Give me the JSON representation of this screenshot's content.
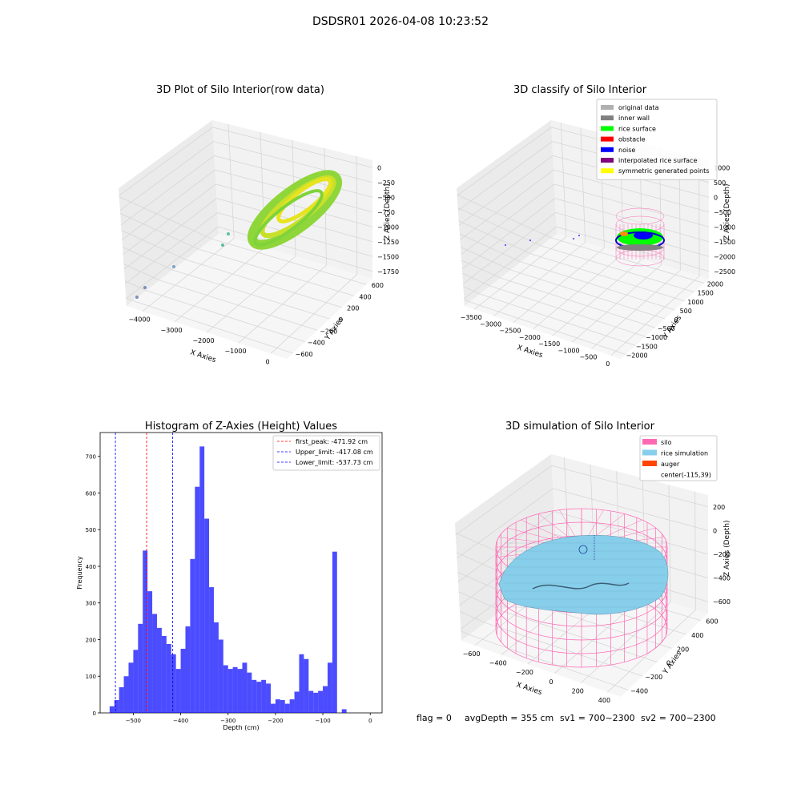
{
  "suptitle": "DSDSR01 2026-04-08 10:23:52",
  "footer": {
    "flag": "flag = 0",
    "avg_depth": "avgDepth = 355 cm",
    "sv1": "sv1 = 700~2300",
    "sv2": "sv2 = 700~2300"
  },
  "colors": {
    "bar": "#0000ff",
    "peak_line": "#ff0000",
    "limit_line": "#0000ff",
    "pane": "#f2f2f2",
    "grid": "#d6d6d6",
    "silo": "#ff69b4",
    "rice_sim": "#87ceeb",
    "auger": "#ff4500",
    "rice_points": "#7fd33a"
  },
  "chart_data": [
    {
      "type": "scatter",
      "subtype": "3d",
      "title": "3D Plot of Silo Interior(row data)",
      "xlabel": "X Axies",
      "ylabel": "Y Axies",
      "zlabel": "Z Axies (Depth)",
      "x_ticks": [
        "−4000",
        "−3000",
        "−2000",
        "−1000",
        "0"
      ],
      "y_ticks": [
        "−600",
        "−400",
        "−200",
        "0",
        "200",
        "400",
        "600"
      ],
      "z_ticks": [
        "−1750",
        "−1500",
        "−1250",
        "−1000",
        "−750",
        "−500",
        "−250",
        "0"
      ],
      "grid": true
    },
    {
      "type": "scatter",
      "subtype": "3d",
      "title": "3D classify of Silo Interior",
      "xlabel": "X Axies",
      "ylabel": "Y Axies",
      "zlabel": "Z Axies (Depth)",
      "x_ticks": [
        "−3500",
        "−3000",
        "−2500",
        "−2000",
        "−1500",
        "−1000",
        "−500",
        "0"
      ],
      "y_ticks": [
        "−2000",
        "−1500",
        "−1000",
        "−500",
        "0",
        "500",
        "1000",
        "1500",
        "2000"
      ],
      "z_ticks": [
        "−2500",
        "−2000",
        "−1500",
        "−1000",
        "−500",
        "0",
        "500",
        "1000"
      ],
      "legend_position": "top-right",
      "legend": [
        {
          "label": "original data",
          "color": "#b0b0b0"
        },
        {
          "label": "inner wall",
          "color": "#808080"
        },
        {
          "label": "rice surface",
          "color": "#00ff00"
        },
        {
          "label": "obstacle",
          "color": "#ff0000"
        },
        {
          "label": "noise",
          "color": "#0000ff"
        },
        {
          "label": "interpolated rice surface",
          "color": "#800080"
        },
        {
          "label": "symmetric generated points",
          "color": "#ffff00"
        }
      ],
      "grid": true
    },
    {
      "type": "bar",
      "subtype": "histogram",
      "title": "Histogram of Z-Axies (Height) Values",
      "xlabel": "Depth (cm)",
      "ylabel": "Frequency",
      "xlim": [
        -570,
        25
      ],
      "ylim": [
        0,
        765
      ],
      "bin_width": 10,
      "x_ticks": [
        -500,
        -400,
        -300,
        -200,
        -100,
        0
      ],
      "x_tick_labels": [
        "−500",
        "−400",
        "−300",
        "−200",
        "−100",
        "0"
      ],
      "y_ticks": [
        0,
        100,
        200,
        300,
        400,
        500,
        600,
        700
      ],
      "y_tick_labels": [
        "0",
        "100",
        "200",
        "300",
        "400",
        "500",
        "600",
        "700"
      ],
      "bins": [
        {
          "left": -550,
          "value": 18
        },
        {
          "left": -540,
          "value": 35
        },
        {
          "left": -530,
          "value": 70
        },
        {
          "left": -520,
          "value": 100
        },
        {
          "left": -510,
          "value": 137
        },
        {
          "left": -500,
          "value": 172
        },
        {
          "left": -490,
          "value": 243
        },
        {
          "left": -480,
          "value": 443
        },
        {
          "left": -470,
          "value": 332
        },
        {
          "left": -460,
          "value": 270
        },
        {
          "left": -450,
          "value": 232
        },
        {
          "left": -440,
          "value": 210
        },
        {
          "left": -430,
          "value": 188
        },
        {
          "left": -420,
          "value": 160
        },
        {
          "left": -410,
          "value": 120
        },
        {
          "left": -400,
          "value": 175
        },
        {
          "left": -390,
          "value": 236
        },
        {
          "left": -380,
          "value": 420
        },
        {
          "left": -370,
          "value": 617
        },
        {
          "left": -360,
          "value": 727
        },
        {
          "left": -350,
          "value": 530
        },
        {
          "left": -340,
          "value": 343
        },
        {
          "left": -330,
          "value": 247
        },
        {
          "left": -320,
          "value": 200
        },
        {
          "left": -310,
          "value": 130
        },
        {
          "left": -300,
          "value": 120
        },
        {
          "left": -290,
          "value": 125
        },
        {
          "left": -280,
          "value": 120
        },
        {
          "left": -270,
          "value": 137
        },
        {
          "left": -260,
          "value": 110
        },
        {
          "left": -250,
          "value": 90
        },
        {
          "left": -240,
          "value": 85
        },
        {
          "left": -230,
          "value": 90
        },
        {
          "left": -220,
          "value": 80
        },
        {
          "left": -210,
          "value": 25
        },
        {
          "left": -200,
          "value": 37
        },
        {
          "left": -190,
          "value": 35
        },
        {
          "left": -180,
          "value": 25
        },
        {
          "left": -170,
          "value": 37
        },
        {
          "left": -160,
          "value": 58
        },
        {
          "left": -150,
          "value": 160
        },
        {
          "left": -140,
          "value": 147
        },
        {
          "left": -130,
          "value": 60
        },
        {
          "left": -120,
          "value": 55
        },
        {
          "left": -110,
          "value": 60
        },
        {
          "left": -100,
          "value": 73
        },
        {
          "left": -90,
          "value": 137
        },
        {
          "left": -80,
          "value": 440
        },
        {
          "left": -60,
          "value": 10
        }
      ],
      "vlines": [
        {
          "name": "first_peak: -471.92 cm",
          "x": -471.92,
          "color": "#ff0000"
        },
        {
          "name": "Upper_limit: -417.08 cm",
          "x": -417.08,
          "color": "#0000ff"
        },
        {
          "name": "Lower_limit: -537.73 cm",
          "x": -537.73,
          "color": "#0000ff"
        }
      ],
      "legend_position": "top-right",
      "grid": false
    },
    {
      "type": "area",
      "subtype": "3d-surface",
      "title": "3D simulation of Silo Interior",
      "xlabel": "X Axies",
      "ylabel": "Y Axies",
      "zlabel": "Z Axies (Depth)",
      "x_ticks": [
        "−600",
        "−400",
        "−200",
        "0",
        "200",
        "400"
      ],
      "y_ticks": [
        "−400",
        "−200",
        "0",
        "200",
        "400",
        "600"
      ],
      "z_ticks": [
        "−600",
        "−400",
        "−200",
        "0",
        "200"
      ],
      "legend_position": "top-right",
      "legend": [
        {
          "label": "silo",
          "color": "#ff69b4"
        },
        {
          "label": "rice simulation",
          "color": "#87ceeb"
        },
        {
          "label": "auger",
          "color": "#ff4500"
        },
        {
          "label": "center(-115,39)",
          "color": ""
        }
      ],
      "grid": true
    }
  ]
}
